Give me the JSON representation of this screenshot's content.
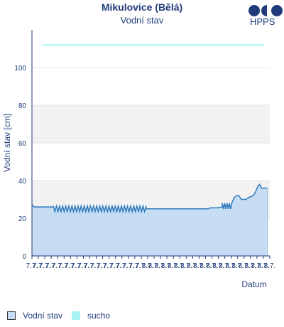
{
  "header": {
    "title": "Mikulovice (Bělá)",
    "subtitle": "Vodní stav",
    "logo_text": "HPPS",
    "logo_icon": "hpps-logo-icon"
  },
  "chart_data": {
    "type": "area",
    "title": "Mikulovice (Bělá)",
    "subtitle": "Vodní stav",
    "xlabel": "Datum",
    "ylabel": "Vodní stav [cm]",
    "ylim": [
      0,
      120
    ],
    "yticks": [
      0,
      20,
      40,
      60,
      80,
      100
    ],
    "xtick_labels": [
      "7.7.",
      "7.7.",
      "7.7.",
      "7.7.",
      "7.7.",
      "7.7.",
      "7.7.",
      "7.7.",
      "7.7.",
      "7.7.",
      "7.7.",
      "7.7.",
      "7.7.",
      "7.7.",
      "7.7.",
      "7.7.",
      "7.7.",
      "7.7.",
      "8.7.",
      "8.7.",
      "8.7.",
      "8.7.",
      "8.7.",
      "8.7.",
      "8.7.",
      "8.7.",
      "8.7.",
      "8.7.",
      "8.7.",
      "8.7.",
      "8.7.",
      "8.7.",
      "8.7.",
      "8.7.",
      "8.7.",
      "8.7.",
      "8.7.",
      "8.7."
    ],
    "x_range": [
      0,
      100
    ],
    "bands": [
      {
        "from": 20,
        "to": 40,
        "color": "#f2f2f2"
      },
      {
        "from": 60,
        "to": 80,
        "color": "#f2f2f2"
      }
    ],
    "threshold": {
      "name": "sucho",
      "value": 112,
      "color": "#a8f2f2"
    },
    "series": [
      {
        "name": "Vodní stav",
        "color": "#2e7bbd",
        "fill": "#c6dcf2",
        "segments": [
          {
            "type": "points",
            "points": [
              [
                0,
                27
              ],
              [
                1,
                26
              ],
              [
                9,
                26
              ]
            ]
          },
          {
            "type": "oscillate",
            "from": 9,
            "to": 48,
            "low": 23.5,
            "high": 26.5,
            "period": 1.3
          },
          {
            "type": "points",
            "points": [
              [
                48,
                25
              ],
              [
                74,
                25
              ],
              [
                75,
                25.5
              ],
              [
                78,
                25.5
              ],
              [
                80,
                26
              ]
            ]
          },
          {
            "type": "oscillate",
            "from": 80,
            "to": 84,
            "low": 25,
            "high": 28,
            "period": 1.0
          },
          {
            "type": "points",
            "points": [
              [
                84,
                28
              ],
              [
                85,
                31
              ],
              [
                86,
                32
              ],
              [
                87,
                32
              ],
              [
                88,
                30
              ],
              [
                90,
                30
              ],
              [
                91,
                31
              ],
              [
                93,
                32
              ],
              [
                94,
                34
              ],
              [
                95,
                37
              ],
              [
                95.7,
                38
              ],
              [
                96.5,
                36
              ],
              [
                99,
                36
              ]
            ]
          }
        ]
      }
    ]
  },
  "legend": {
    "items": [
      {
        "label": "Vodní stav",
        "color": "#c6dcf2",
        "border": "#333333"
      },
      {
        "label": "sucho",
        "color": "#a8f2f2",
        "border": "#a8f2f2"
      }
    ]
  }
}
